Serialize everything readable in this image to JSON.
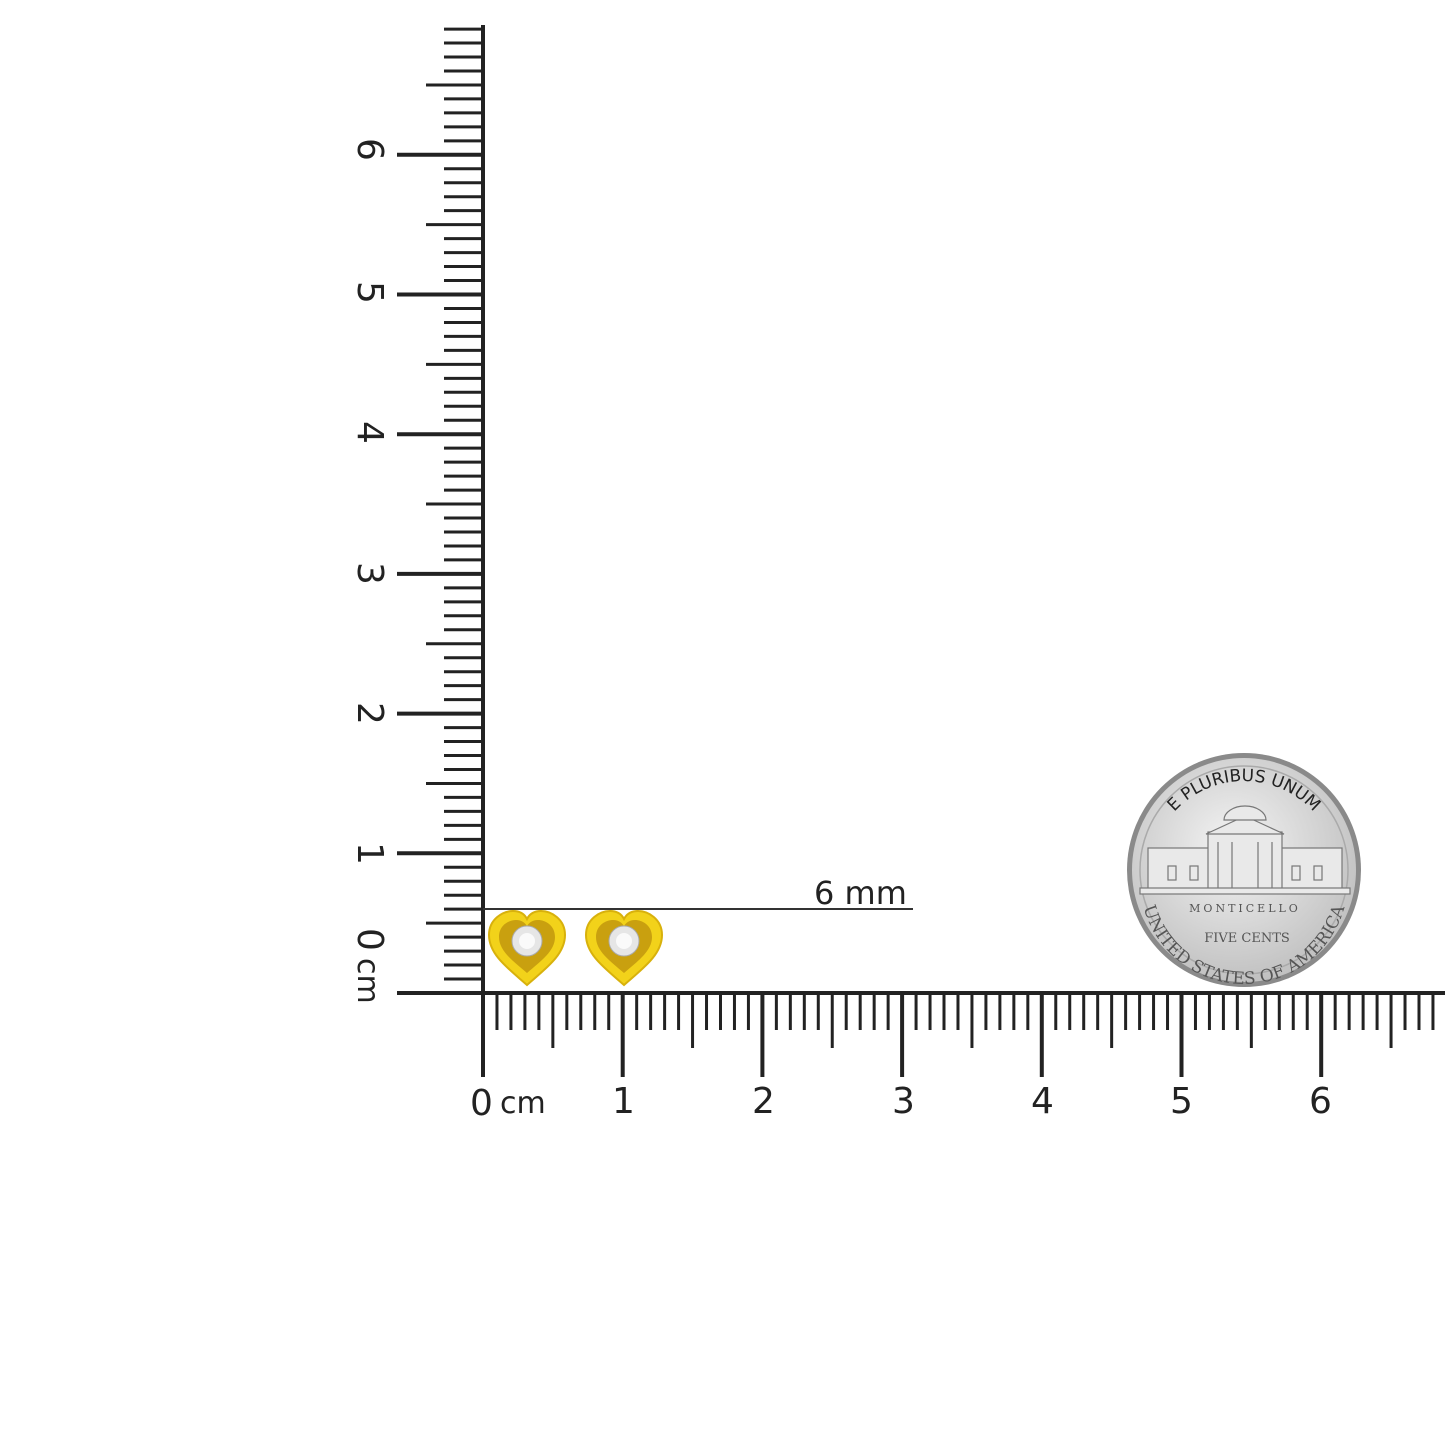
{
  "ruler": {
    "unit": "cm",
    "horizontal_labels": [
      "0",
      "1",
      "2",
      "3",
      "4",
      "5",
      "6"
    ],
    "vertical_labels": [
      "0",
      "1",
      "2",
      "3",
      "4",
      "5",
      "6"
    ],
    "unit_label": "cm"
  },
  "measurement": {
    "label": "6 mm",
    "value_mm": 6
  },
  "product": {
    "name": "heart stud earrings",
    "metal_color": "#f2d21a",
    "count": 2
  },
  "coin": {
    "top_text": "E PLURIBUS UNUM",
    "building_text": "MONTICELLO",
    "value_text": "FIVE CENTS",
    "bottom_text": "UNITED STATES OF AMERICA"
  },
  "colors": {
    "ruler": "#222222",
    "background": "#ffffff",
    "coin": "#d9d9d9"
  }
}
